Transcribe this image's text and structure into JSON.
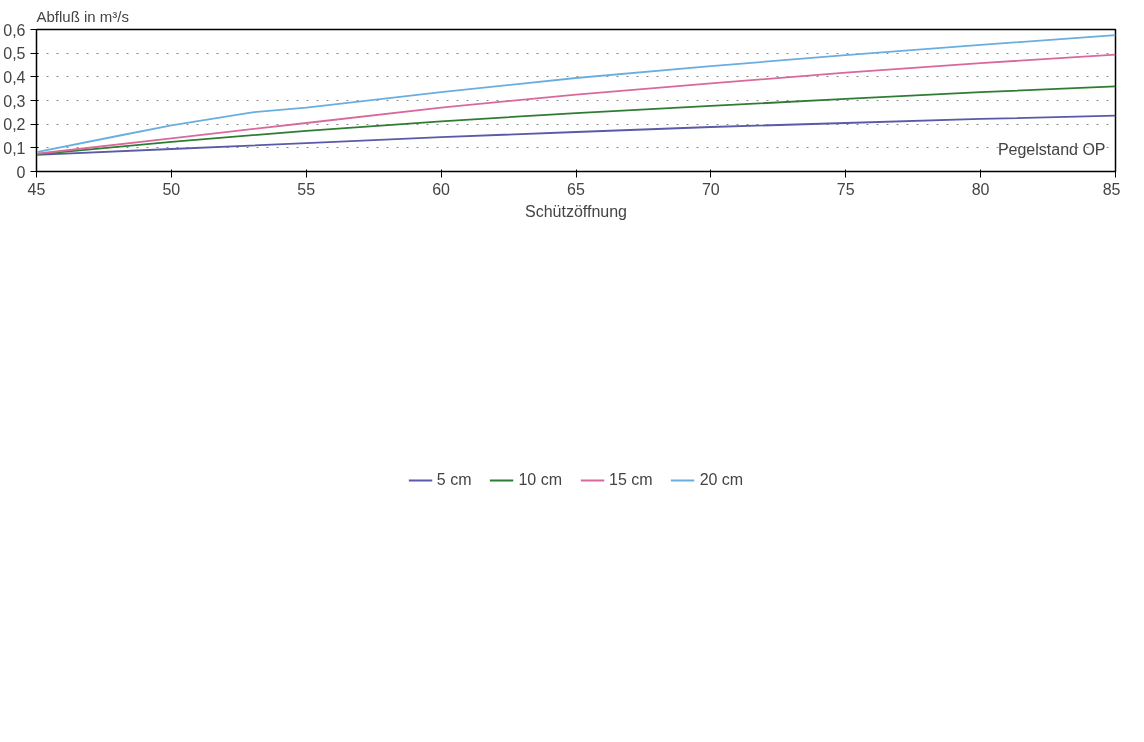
{
  "chart_data": {
    "type": "line",
    "ylabel": "Abfluß in m³/s",
    "xlabel": "Schützöffnung",
    "annotations": [
      "Pegelstand OP"
    ],
    "xlim": [
      45,
      85
    ],
    "xticks": [
      45,
      50,
      55,
      60,
      65,
      70,
      75,
      80,
      85
    ],
    "ylim": [
      0,
      0.6
    ],
    "yticks": [
      0,
      {
        "value": 0.1,
        "label": "0,1"
      },
      {
        "value": 0.2,
        "label": "0,2"
      },
      {
        "value": 0.3,
        "label": "0,3"
      },
      {
        "value": 0.4,
        "label": "0,4"
      },
      {
        "value": 0.5,
        "label": "0,5"
      },
      {
        "value": 0.6,
        "label": "0,6"
      }
    ],
    "grid": "y",
    "legend": "bottom",
    "series": [
      {
        "name": "5 cm",
        "color": "#5a5aa8",
        "x": [
          45,
          50,
          55,
          60,
          65,
          70,
          75,
          80,
          85
        ],
        "values": [
          0.07,
          0.095,
          0.12,
          0.145,
          0.167,
          0.188,
          0.205,
          0.222,
          0.236
        ]
      },
      {
        "name": "10 cm",
        "color": "#2e7d32",
        "x": [
          45,
          50,
          55,
          60,
          65,
          70,
          75,
          80,
          85
        ],
        "values": [
          0.072,
          0.125,
          0.172,
          0.212,
          0.247,
          0.277,
          0.307,
          0.335,
          0.36
        ]
      },
      {
        "name": "15 cm",
        "color": "#d9699a",
        "x": [
          45,
          50,
          55,
          60,
          65,
          70,
          75,
          80,
          85
        ],
        "values": [
          0.075,
          0.14,
          0.205,
          0.27,
          0.325,
          0.372,
          0.418,
          0.458,
          0.494
        ]
      },
      {
        "name": "20 cm",
        "color": "#6aaee0",
        "x": [
          45,
          48,
          50,
          53,
          55,
          60,
          65,
          70,
          75,
          80,
          85
        ],
        "values": [
          0.082,
          0.15,
          0.195,
          0.25,
          0.27,
          0.335,
          0.395,
          0.445,
          0.492,
          0.535,
          0.576
        ]
      }
    ]
  }
}
